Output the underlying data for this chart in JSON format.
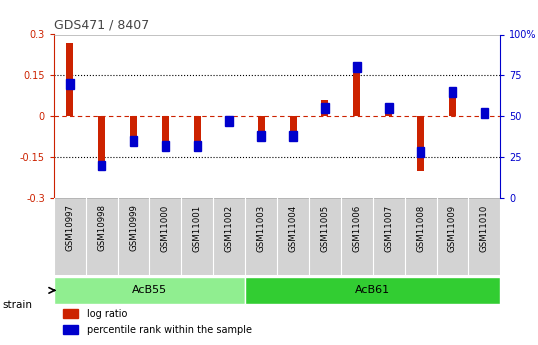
{
  "title": "GDS471 / 8407",
  "samples": [
    "GSM10997",
    "GSM10998",
    "GSM10999",
    "GSM11000",
    "GSM11001",
    "GSM11002",
    "GSM11003",
    "GSM11004",
    "GSM11005",
    "GSM11006",
    "GSM11007",
    "GSM11008",
    "GSM11009",
    "GSM11010"
  ],
  "log_ratio": [
    0.27,
    -0.2,
    -0.09,
    -0.12,
    -0.13,
    -0.02,
    -0.06,
    -0.06,
    0.06,
    0.16,
    0.03,
    -0.2,
    0.1,
    0.02
  ],
  "percentile_rank": [
    70,
    20,
    35,
    32,
    32,
    47,
    38,
    38,
    55,
    80,
    55,
    28,
    65,
    52
  ],
  "ylim_left": [
    -0.3,
    0.3
  ],
  "ylim_right": [
    0,
    100
  ],
  "yticks_left": [
    -0.3,
    -0.15,
    0.0,
    0.15,
    0.3
  ],
  "yticks_right": [
    0,
    25,
    50,
    75,
    100
  ],
  "ytick_labels_left": [
    "-0.3",
    "-0.15",
    "0",
    "0.15",
    "0.3"
  ],
  "ytick_labels_right": [
    "0",
    "25",
    "50",
    "75",
    "100%"
  ],
  "hlines": [
    0.15,
    -0.15
  ],
  "strain_groups": [
    {
      "label": "AcB55",
      "start": 0,
      "end": 6,
      "color": "#90ee90"
    },
    {
      "label": "AcB61",
      "start": 6,
      "end": 14,
      "color": "#32cd32"
    }
  ],
  "strain_label": "strain",
  "bar_width": 0.4,
  "log_ratio_color": "#cc2200",
  "percentile_color": "#0000cc",
  "zero_line_color": "#cc2200",
  "dotted_line_color": "#000000",
  "bg_color": "#ffffff",
  "tick_label_color_left": "#cc2200",
  "tick_label_color_right": "#0000cc",
  "legend_lr": "log ratio",
  "legend_pr": "percentile rank within the sample",
  "gray_bg": "#d3d3d3",
  "white_div": "#ffffff"
}
